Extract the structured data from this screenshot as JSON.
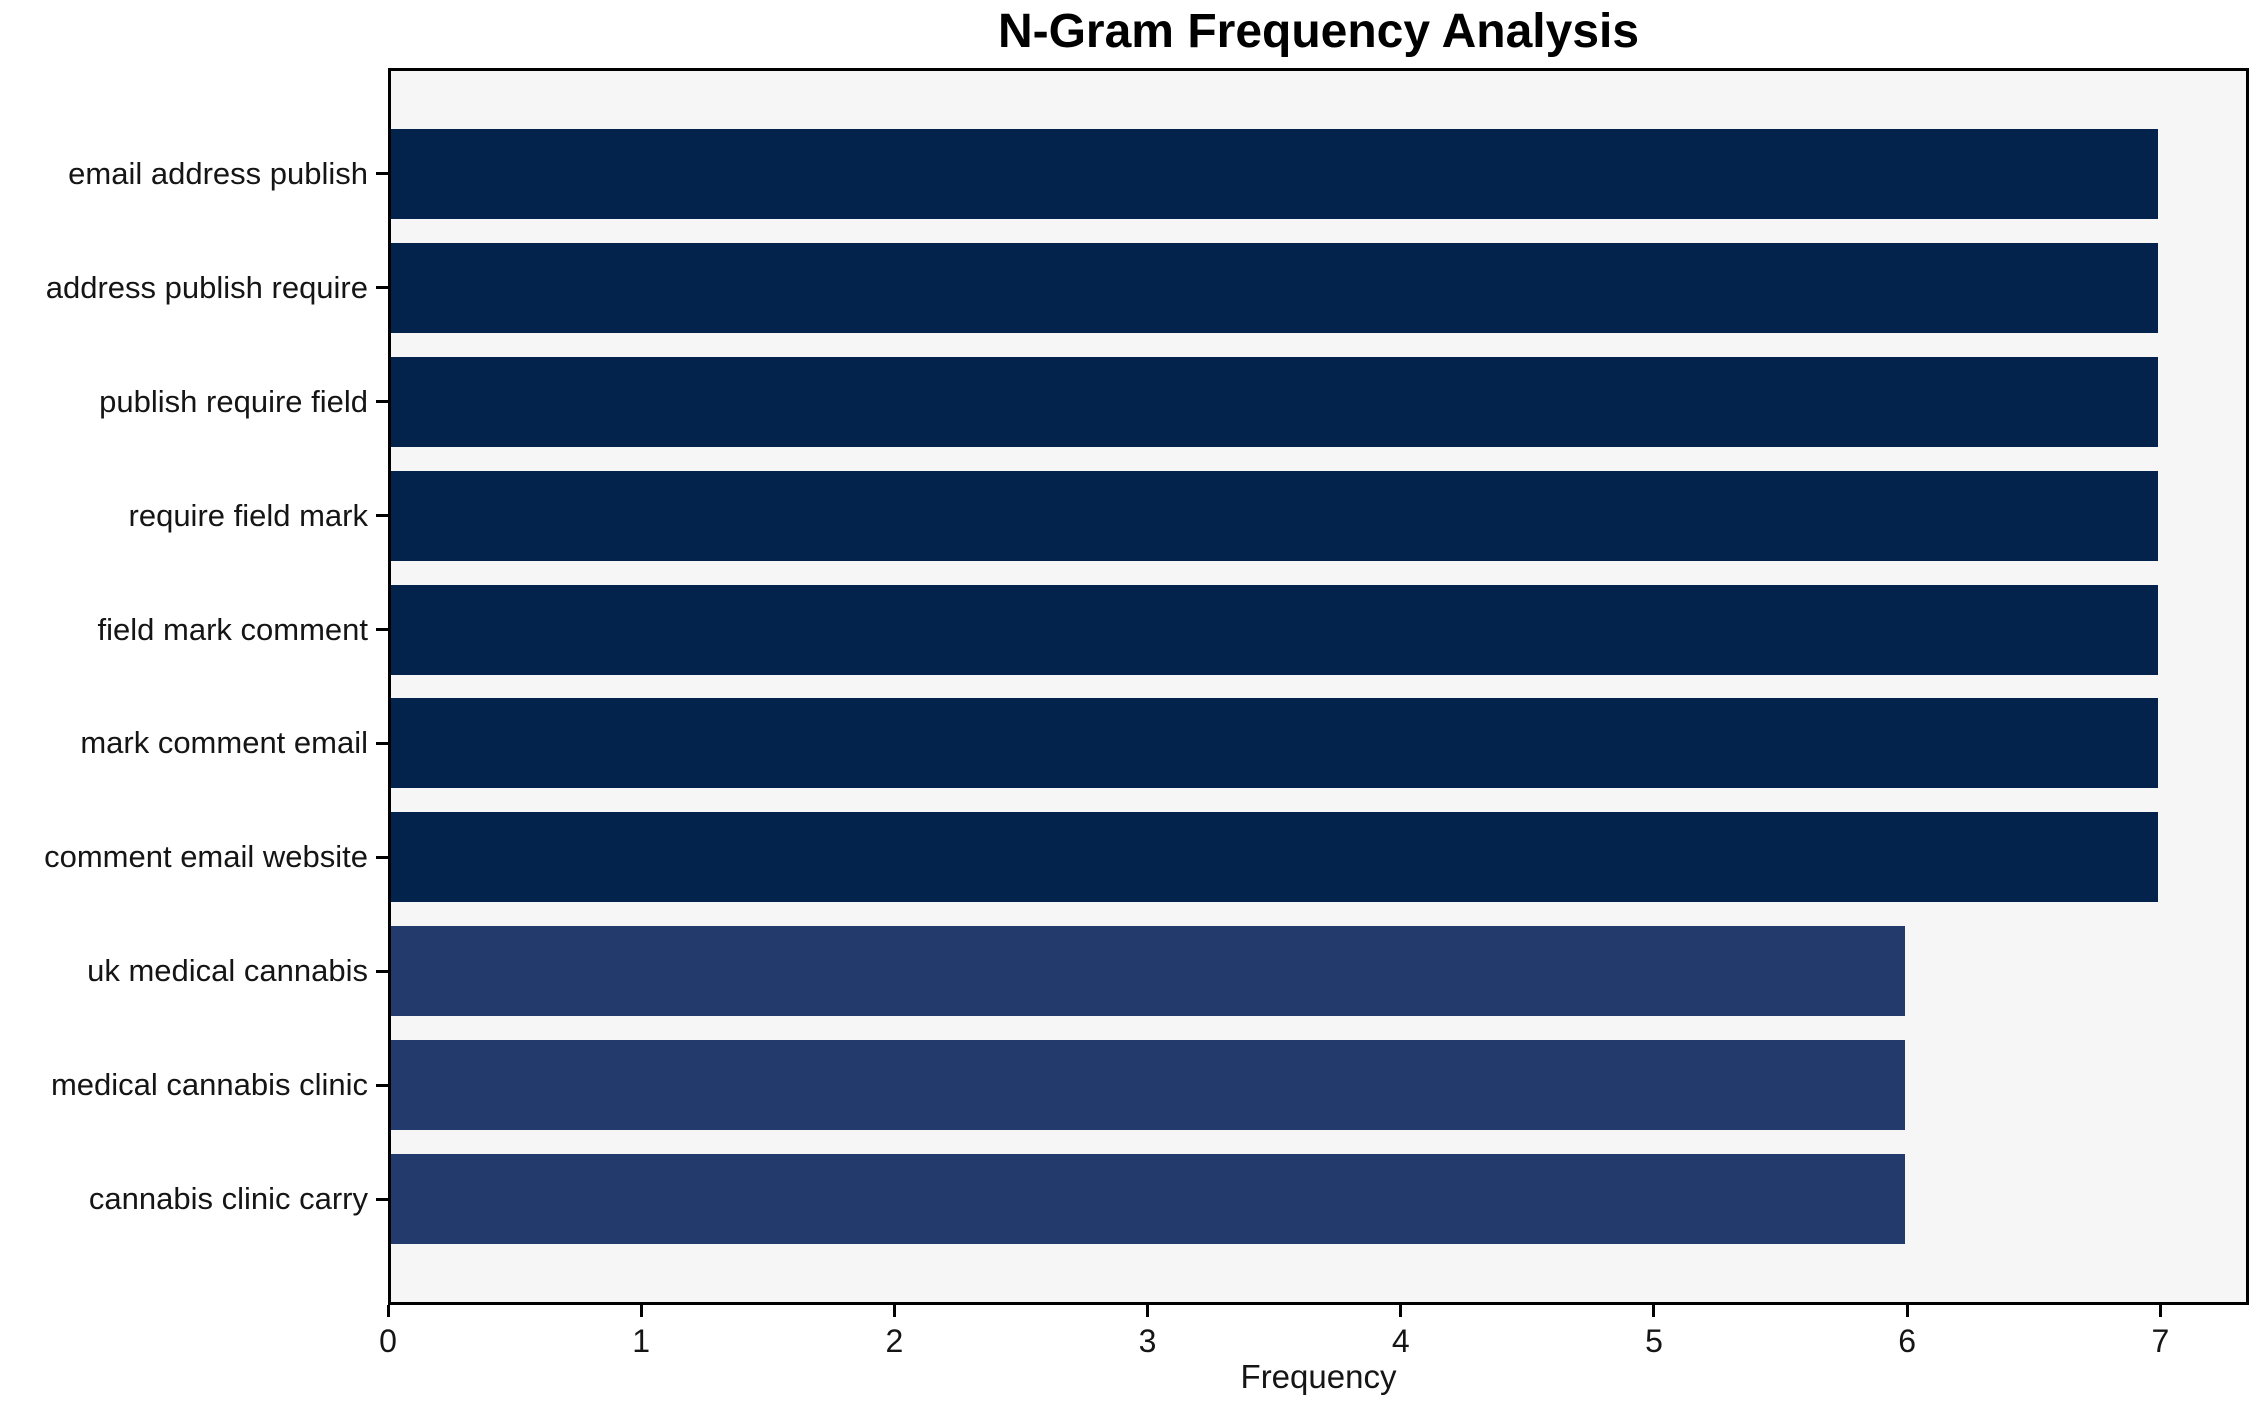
{
  "figure": {
    "background": "#ffffff",
    "plot_background": "#f6f6f6",
    "spine_color": "#000000",
    "text_color": "#151515"
  },
  "chart_data": {
    "type": "bar",
    "orientation": "horizontal",
    "title": "N-Gram Frequency Analysis",
    "xlabel": "Frequency",
    "ylabel": "",
    "categories": [
      "email address publish",
      "address publish require",
      "publish require field",
      "require field mark",
      "field mark comment",
      "mark comment email",
      "comment email website",
      "uk medical cannabis",
      "medical cannabis clinic",
      "cannabis clinic carry"
    ],
    "values": [
      7,
      7,
      7,
      7,
      7,
      7,
      7,
      6,
      6,
      6
    ],
    "bar_colors": [
      "#03234d",
      "#03234d",
      "#03234d",
      "#03234d",
      "#03234d",
      "#03234d",
      "#03234d",
      "#223a6c",
      "#223a6c",
      "#223a6c"
    ],
    "xlim": [
      0,
      7.35
    ],
    "xticks": [
      0,
      1,
      2,
      3,
      4,
      5,
      6,
      7
    ],
    "grid": false,
    "legend": false
  }
}
